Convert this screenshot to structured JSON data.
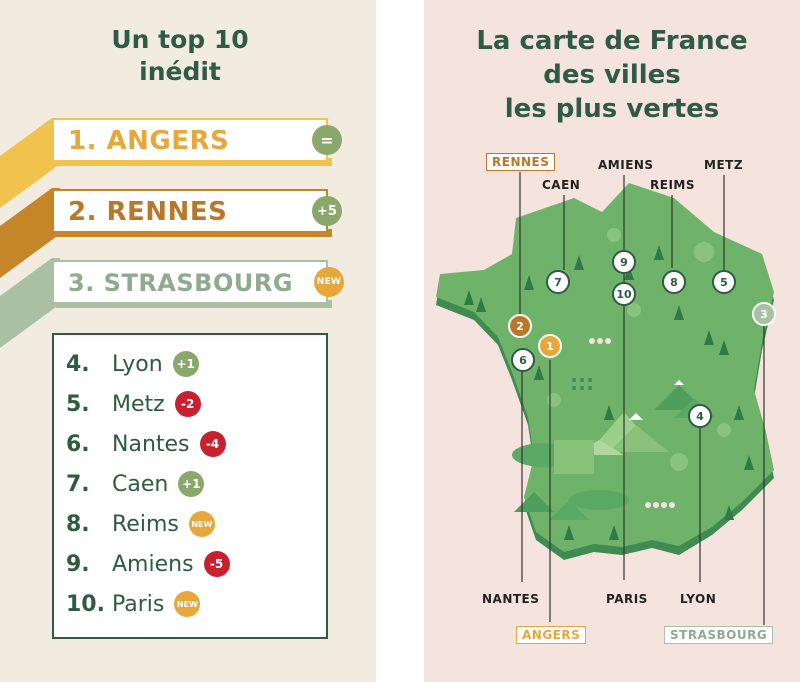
{
  "left": {
    "title_line1": "Un top 10",
    "title_line2": "inédit",
    "podium": [
      {
        "label": "1. ANGERS",
        "badge": "=",
        "color": "#e8a73a",
        "ribbon": "#f1c24c",
        "badge_color": "#8aa86b"
      },
      {
        "label": "2. RENNES",
        "badge": "+5",
        "color": "#b8782a",
        "ribbon": "#c5862a",
        "badge_color": "#8aa86b"
      },
      {
        "label": "3. STRASBOURG",
        "badge": "NEW",
        "color": "#8faa8f",
        "ribbon": "#a9c0a4",
        "badge_color": "#e8a73a"
      }
    ],
    "list": [
      {
        "rank": "4.",
        "city": "Lyon",
        "badge": "+1",
        "badge_color": "#8aa86b"
      },
      {
        "rank": "5.",
        "city": "Metz",
        "badge": "-2",
        "badge_color": "#c8202e"
      },
      {
        "rank": "6.",
        "city": "Nantes",
        "badge": "-4",
        "badge_color": "#c8202e"
      },
      {
        "rank": "7.",
        "city": "Caen",
        "badge": "+1",
        "badge_color": "#8aa86b"
      },
      {
        "rank": "8.",
        "city": "Reims",
        "badge": "NEW",
        "badge_color": "#e8a73a"
      },
      {
        "rank": "9.",
        "city": "Amiens",
        "badge": "-5",
        "badge_color": "#c8202e"
      },
      {
        "rank": "10.",
        "city": "Paris",
        "badge": "NEW",
        "badge_color": "#e8a73a"
      }
    ]
  },
  "right": {
    "title_line1": "La carte de France",
    "title_line2": "des villes",
    "title_line3": "les plus vertes",
    "labels": {
      "rennes": "RENNES",
      "amiens": "AMIENS",
      "metz": "METZ",
      "caen": "CAEN",
      "reims": "REIMS",
      "nantes": "NANTES",
      "paris": "PARIS",
      "lyon": "LYON",
      "angers": "ANGERS",
      "strasbourg": "STRASBOURG"
    },
    "markers": {
      "m1": "1",
      "m2": "2",
      "m3": "3",
      "m4": "4",
      "m5": "5",
      "m6": "6",
      "m7": "7",
      "m8": "8",
      "m9": "9",
      "m10": "10"
    },
    "colors": {
      "map_green": "#6fb36a",
      "map_dark": "#3f8b52",
      "gold": "#e8a73a",
      "bronze": "#b8782a",
      "sage": "#a9c0a4"
    }
  }
}
